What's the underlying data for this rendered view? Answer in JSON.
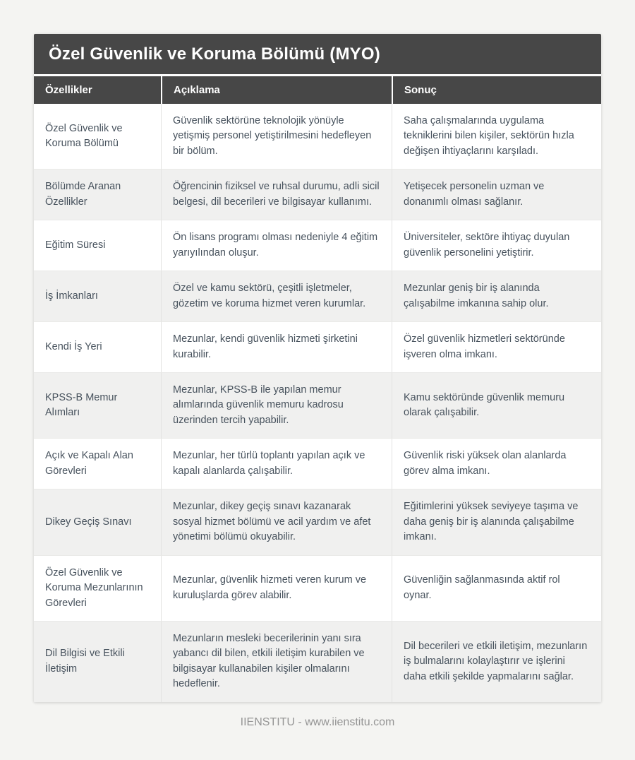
{
  "title_bar": {
    "title": "Özel Güvenlik ve Koruma Bölümü (MYO)"
  },
  "table": {
    "columns": {
      "feature": "Özellikler",
      "description": "Açıklama",
      "result": "Sonuç"
    },
    "rows": [
      {
        "feature": "Özel Güvenlik ve Koruma Bölümü",
        "description": "Güvenlik sektörüne teknolojik yönüyle yetişmiş personel yetiştirilmesini hedefleyen bir bölüm.",
        "result": "Saha çalışmalarında uygulama tekniklerini bilen kişiler, sektörün hızla değişen ihtiyaçlarını karşıladı."
      },
      {
        "feature": "Bölümde Aranan Özellikler",
        "description": "Öğrencinin fiziksel ve ruhsal durumu, adli sicil belgesi, dil becerileri ve bilgisayar kullanımı.",
        "result": "Yetişecek personelin uzman ve donanımlı olması sağlanır."
      },
      {
        "feature": "Eğitim Süresi",
        "description": "Ön lisans programı olması nedeniyle 4 eğitim yarıyılından oluşur.",
        "result": "Üniversiteler, sektöre ihtiyaç duyulan güvenlik personelini yetiştirir."
      },
      {
        "feature": "İş İmkanları",
        "description": "Özel ve kamu sektörü, çeşitli işletmeler, gözetim ve koruma hizmet veren kurumlar.",
        "result": "Mezunlar geniş bir iş alanında çalışabilme imkanına sahip olur."
      },
      {
        "feature": "Kendi İş Yeri",
        "description": "Mezunlar, kendi güvenlik hizmeti şirketini kurabilir.",
        "result": "Özel güvenlik hizmetleri sektöründe işveren olma imkanı."
      },
      {
        "feature": "KPSS-B Memur Alımları",
        "description": "Mezunlar, KPSS-B ile yapılan memur alımlarında güvenlik memuru kadrosu üzerinden tercih yapabilir.",
        "result": "Kamu sektöründe güvenlik memuru olarak çalışabilir."
      },
      {
        "feature": "Açık ve Kapalı Alan Görevleri",
        "description": "Mezunlar, her türlü toplantı yapılan açık ve kapalı alanlarda çalışabilir.",
        "result": "Güvenlik riski yüksek olan alanlarda görev alma imkanı."
      },
      {
        "feature": "Dikey Geçiş Sınavı",
        "description": "Mezunlar, dikey geçiş sınavı kazanarak sosyal hizmet bölümü ve acil yardım ve afet yönetimi bölümü okuyabilir.",
        "result": "Eğitimlerini yüksek seviyeye taşıma ve daha geniş bir iş alanında çalışabilme imkanı."
      },
      {
        "feature": "Özel Güvenlik ve Koruma Mezunlarının Görevleri",
        "description": "Mezunlar, güvenlik hizmeti veren kurum ve kuruluşlarda görev alabilir.",
        "result": "Güvenliğin sağlanmasında aktif rol oynar."
      },
      {
        "feature": "Dil Bilgisi ve Etkili İletişim",
        "description": "Mezunların mesleki becerilerinin yanı sıra yabancı dil bilen, etkili iletişim kurabilen ve bilgisayar kullanabilen kişiler olmalarını hedeflenir.",
        "result": "Dil becerileri ve etkili iletişim, mezunların iş bulmalarını kolaylaştırır ve işlerini daha etkili şekilde yapmalarını sağlar."
      }
    ]
  },
  "footer": {
    "text": "IIENSTITU - www.iienstitu.com"
  },
  "colors": {
    "header_background": "#474747",
    "header_text": "#ffffff",
    "body_text": "#47525d",
    "row_alt_background": "#f0f0ef",
    "page_background": "#f4f4f2",
    "footer_text": "#959595"
  }
}
